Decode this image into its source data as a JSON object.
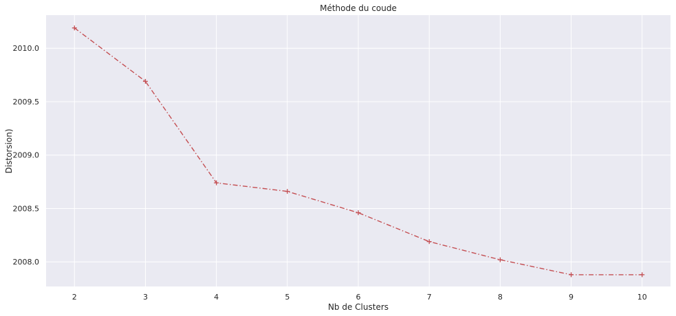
{
  "chart_data": {
    "type": "line",
    "title": "Méthode du coude",
    "xlabel": "Nb de Clusters",
    "ylabel": "Distorsion)",
    "x": [
      2,
      3,
      4,
      5,
      6,
      7,
      8,
      9,
      10
    ],
    "series": [
      {
        "values": [
          2010.19,
          2009.69,
          2008.74,
          2008.66,
          2008.46,
          2008.19,
          2008.02,
          2007.88,
          2007.88
        ],
        "color": "#c44e52",
        "line_style": "dash-dot",
        "marker": "plus"
      }
    ],
    "xticks": [
      2,
      3,
      4,
      5,
      6,
      7,
      8,
      9,
      10
    ],
    "xtick_labels": [
      "2",
      "3",
      "4",
      "5",
      "6",
      "7",
      "8",
      "9",
      "10"
    ],
    "yticks": [
      2008.0,
      2008.5,
      2009.0,
      2009.5,
      2010.0
    ],
    "ytick_labels": [
      "2008.0",
      "2008.5",
      "2009.0",
      "2009.5",
      "2010.0"
    ],
    "xlim": [
      1.6,
      10.4
    ],
    "ylim": [
      2007.77,
      2010.31
    ],
    "grid": true,
    "background": "#eaeaf2"
  }
}
